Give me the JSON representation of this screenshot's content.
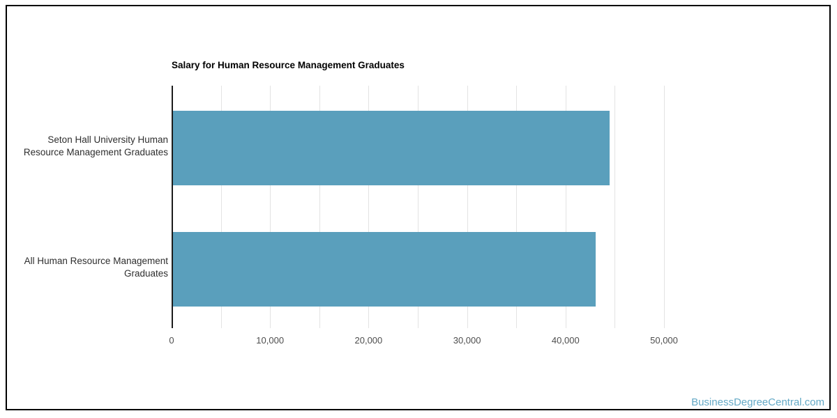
{
  "frame": {
    "border_color": "#000000"
  },
  "watermark": {
    "text": "BusinessDegreeCentral.com",
    "color": "#64A9C6"
  },
  "chart_data": {
    "type": "bar",
    "orientation": "horizontal",
    "title": "Salary for Human Resource Management Graduates",
    "categories": [
      {
        "label": "Seton Hall University Human Resource Management Graduates",
        "lines": [
          "Seton Hall University Human",
          "Resource Management Graduates"
        ]
      },
      {
        "label": "All Human Resource Management Graduates",
        "lines": [
          "All Human Resource Management",
          "Graduates"
        ]
      }
    ],
    "values": [
      44300,
      42900
    ],
    "xlim": [
      0,
      50000
    ],
    "gridline_step": 5000,
    "x_ticks": [
      {
        "value": 0,
        "label": "0"
      },
      {
        "value": 10000,
        "label": "10,000"
      },
      {
        "value": 20000,
        "label": "20,000"
      },
      {
        "value": 30000,
        "label": "30,000"
      },
      {
        "value": 40000,
        "label": "40,000"
      },
      {
        "value": 50000,
        "label": "50,000"
      }
    ],
    "bar_color": "#5A9FBC",
    "grid": true,
    "legend": "none",
    "xlabel": "",
    "ylabel": ""
  }
}
